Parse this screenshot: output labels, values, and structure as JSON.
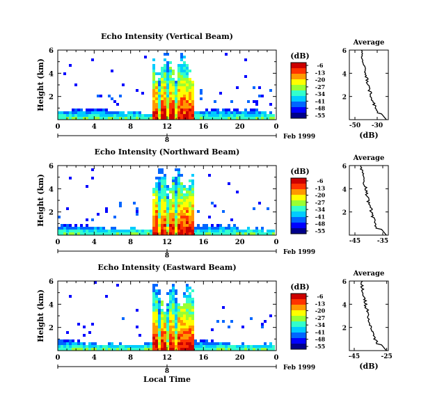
{
  "chart_data": [
    {
      "type": "heatmap",
      "title": "Echo Intensity (Vertical Beam)",
      "ylabel": "Height (km)",
      "xlabel": "",
      "x_ticks": [
        "0",
        "4",
        "8",
        "12",
        "16",
        "20",
        "0"
      ],
      "y_ticks": [
        "6",
        "4",
        "2"
      ],
      "date_label": "Feb 1999",
      "date_tick": "8",
      "xlim": [
        0,
        24
      ],
      "ylim": [
        0,
        6
      ],
      "colorbar": {
        "unit": "(dB)",
        "ticks": [
          "-6",
          "-13",
          "-20",
          "-27",
          "-34",
          "-41",
          "-48",
          "-55"
        ]
      },
      "precip_band": [
        10.5,
        15.0
      ],
      "average": {
        "title": "Average",
        "xlabel": "(dB)",
        "x_ticks": [
          "-50",
          "-30"
        ],
        "y_ticks": [
          "6",
          "4",
          "2"
        ],
        "xlim": [
          -55,
          -20
        ]
      }
    },
    {
      "type": "heatmap",
      "title": "Echo Intensity (Northward Beam)",
      "ylabel": "Height (km)",
      "xlabel": "",
      "x_ticks": [
        "0",
        "4",
        "8",
        "12",
        "16",
        "20",
        "0"
      ],
      "y_ticks": [
        "6",
        "4",
        "2"
      ],
      "date_label": "Feb 1999",
      "date_tick": "8",
      "xlim": [
        0,
        24
      ],
      "ylim": [
        0,
        6
      ],
      "colorbar": {
        "unit": "(dB)",
        "ticks": [
          "-6",
          "-13",
          "-20",
          "-27",
          "-34",
          "-41",
          "-48",
          "-55"
        ]
      },
      "precip_band": [
        10.5,
        15.0
      ],
      "average": {
        "title": "Average",
        "xlabel": "",
        "x_ticks": [
          "-45",
          "-35"
        ],
        "y_ticks": [
          "6",
          "4",
          "2"
        ],
        "xlim": [
          -47,
          -33
        ]
      }
    },
    {
      "type": "heatmap",
      "title": "Echo Intensity (Eastward Beam)",
      "ylabel": "Height (km)",
      "xlabel": "Local Time",
      "x_ticks": [
        "0",
        "4",
        "8",
        "12",
        "16",
        "20",
        "0"
      ],
      "y_ticks": [
        "6",
        "4",
        "2"
      ],
      "date_label": "Feb 1999",
      "date_tick": "8",
      "xlim": [
        0,
        24
      ],
      "ylim": [
        0,
        6
      ],
      "colorbar": {
        "unit": "(dB)",
        "ticks": [
          "-6",
          "-13",
          "-20",
          "-27",
          "-34",
          "-41",
          "-48",
          "-55"
        ]
      },
      "precip_band": [
        10.5,
        15.0
      ],
      "average": {
        "title": "Average",
        "xlabel": "(dB)",
        "x_ticks": [
          "-45",
          "-25"
        ],
        "y_ticks": [
          "6",
          "4",
          "2"
        ],
        "xlim": [
          -48,
          -24
        ]
      }
    }
  ],
  "colors": [
    "#00008b",
    "#0000ff",
    "#0066ff",
    "#00ccff",
    "#33ffcc",
    "#99ff33",
    "#ffff00",
    "#ff9900",
    "#ff3300",
    "#cc0000"
  ]
}
